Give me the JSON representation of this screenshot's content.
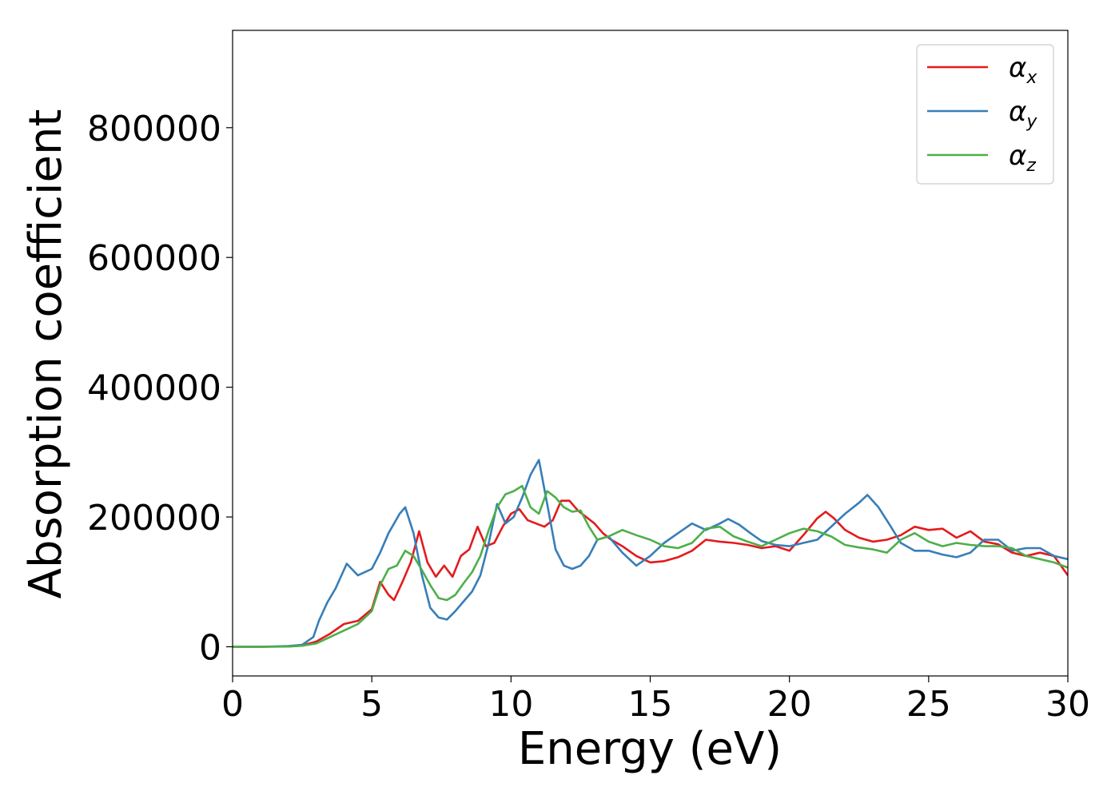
{
  "chart_data": {
    "type": "line",
    "xlabel": "Energy (eV)",
    "ylabel": "Absorption coefficient",
    "xlim": [
      0,
      30
    ],
    "ylim": [
      -45000,
      950000
    ],
    "xticks": [
      0,
      5,
      10,
      15,
      20,
      25,
      30
    ],
    "yticks": [
      0,
      200000,
      400000,
      600000,
      800000
    ],
    "grid": false,
    "legend_position": "top-right",
    "series": [
      {
        "name": "α_x",
        "label_base": "α",
        "label_sub": "x",
        "color": "#e41a1c",
        "x": [
          0,
          1,
          2,
          2.5,
          3,
          3.5,
          4,
          4.5,
          5,
          5.3,
          5.6,
          5.8,
          6.1,
          6.4,
          6.7,
          7.0,
          7.3,
          7.6,
          7.9,
          8.2,
          8.5,
          8.8,
          9.1,
          9.4,
          9.7,
          10.0,
          10.3,
          10.6,
          10.9,
          11.2,
          11.5,
          11.8,
          12.1,
          12.4,
          12.7,
          13.0,
          13.3,
          13.6,
          14.0,
          14.5,
          15.0,
          15.5,
          16.0,
          16.5,
          17.0,
          17.5,
          18.0,
          18.5,
          19.0,
          19.5,
          20.0,
          20.5,
          21.0,
          21.3,
          21.6,
          22.0,
          22.5,
          23.0,
          23.5,
          24.0,
          24.5,
          25.0,
          25.5,
          26.0,
          26.5,
          27.0,
          27.5,
          28.0,
          28.5,
          29.0,
          29.5,
          30.0
        ],
        "values": [
          0,
          0,
          500,
          2000,
          8000,
          20000,
          35000,
          40000,
          58000,
          100000,
          80000,
          72000,
          100000,
          130000,
          178000,
          130000,
          108000,
          125000,
          108000,
          140000,
          150000,
          185000,
          155000,
          160000,
          185000,
          205000,
          212000,
          195000,
          190000,
          185000,
          195000,
          225000,
          225000,
          210000,
          200000,
          190000,
          175000,
          165000,
          155000,
          140000,
          130000,
          132000,
          138000,
          148000,
          165000,
          162000,
          160000,
          157000,
          152000,
          155000,
          148000,
          172000,
          198000,
          208000,
          198000,
          180000,
          168000,
          162000,
          165000,
          172000,
          185000,
          180000,
          182000,
          168000,
          178000,
          162000,
          158000,
          145000,
          140000,
          145000,
          140000,
          110000
        ]
      },
      {
        "name": "α_y",
        "label_base": "α",
        "label_sub": "y",
        "color": "#377eb8",
        "x": [
          0,
          1,
          2,
          2.5,
          2.9,
          3.1,
          3.4,
          3.7,
          4.1,
          4.5,
          5.0,
          5.3,
          5.6,
          6.0,
          6.2,
          6.5,
          6.8,
          7.1,
          7.4,
          7.7,
          8.0,
          8.3,
          8.6,
          8.9,
          9.2,
          9.5,
          9.8,
          10.1,
          10.4,
          10.7,
          11.0,
          11.3,
          11.6,
          11.9,
          12.2,
          12.5,
          12.8,
          13.1,
          13.5,
          14.0,
          14.5,
          15.0,
          15.5,
          16.0,
          16.5,
          17.0,
          17.5,
          17.8,
          18.2,
          18.6,
          19.0,
          19.5,
          20.0,
          20.5,
          21.0,
          21.5,
          22.0,
          22.5,
          22.8,
          23.2,
          23.6,
          24.0,
          24.5,
          25.0,
          25.5,
          26.0,
          26.5,
          27.0,
          27.5,
          28.0,
          28.5,
          29.0,
          29.5,
          30.0
        ],
        "values": [
          0,
          0,
          1000,
          3000,
          15000,
          40000,
          68000,
          90000,
          128000,
          110000,
          120000,
          145000,
          175000,
          205000,
          215000,
          175000,
          110000,
          60000,
          45000,
          42000,
          55000,
          70000,
          85000,
          110000,
          160000,
          220000,
          190000,
          200000,
          230000,
          265000,
          288000,
          220000,
          150000,
          125000,
          120000,
          125000,
          140000,
          165000,
          170000,
          145000,
          125000,
          140000,
          160000,
          175000,
          190000,
          180000,
          190000,
          197000,
          188000,
          175000,
          163000,
          157000,
          155000,
          160000,
          165000,
          185000,
          205000,
          222000,
          234000,
          215000,
          188000,
          160000,
          148000,
          148000,
          142000,
          138000,
          145000,
          165000,
          165000,
          148000,
          152000,
          152000,
          140000,
          135000
        ]
      },
      {
        "name": "α_z",
        "label_base": "α",
        "label_sub": "z",
        "color": "#4daf4a",
        "x": [
          0,
          1,
          2,
          2.5,
          3,
          3.5,
          4,
          4.5,
          5,
          5.3,
          5.6,
          5.9,
          6.2,
          6.5,
          6.8,
          7.1,
          7.4,
          7.7,
          8.0,
          8.3,
          8.6,
          8.9,
          9.2,
          9.5,
          9.8,
          10.1,
          10.4,
          10.7,
          11.0,
          11.3,
          11.6,
          11.9,
          12.2,
          12.5,
          12.8,
          13.1,
          13.5,
          14.0,
          14.5,
          15.0,
          15.5,
          16.0,
          16.5,
          17.0,
          17.5,
          18.0,
          18.5,
          19.0,
          19.5,
          20.0,
          20.5,
          21.0,
          21.5,
          22.0,
          22.5,
          23.0,
          23.5,
          24.0,
          24.5,
          25.0,
          25.5,
          26.0,
          26.5,
          27.0,
          27.5,
          28.0,
          28.5,
          29.0,
          29.5,
          30.0
        ],
        "values": [
          0,
          0,
          300,
          1500,
          5000,
          15000,
          25000,
          35000,
          55000,
          95000,
          120000,
          125000,
          148000,
          140000,
          118000,
          95000,
          75000,
          72000,
          80000,
          98000,
          115000,
          140000,
          180000,
          215000,
          235000,
          240000,
          248000,
          215000,
          205000,
          240000,
          230000,
          215000,
          208000,
          210000,
          185000,
          165000,
          170000,
          180000,
          172000,
          165000,
          155000,
          152000,
          160000,
          182000,
          185000,
          170000,
          162000,
          155000,
          165000,
          175000,
          182000,
          178000,
          170000,
          157000,
          153000,
          150000,
          145000,
          165000,
          175000,
          162000,
          155000,
          160000,
          157000,
          155000,
          155000,
          152000,
          140000,
          135000,
          130000,
          122000
        ]
      }
    ]
  }
}
